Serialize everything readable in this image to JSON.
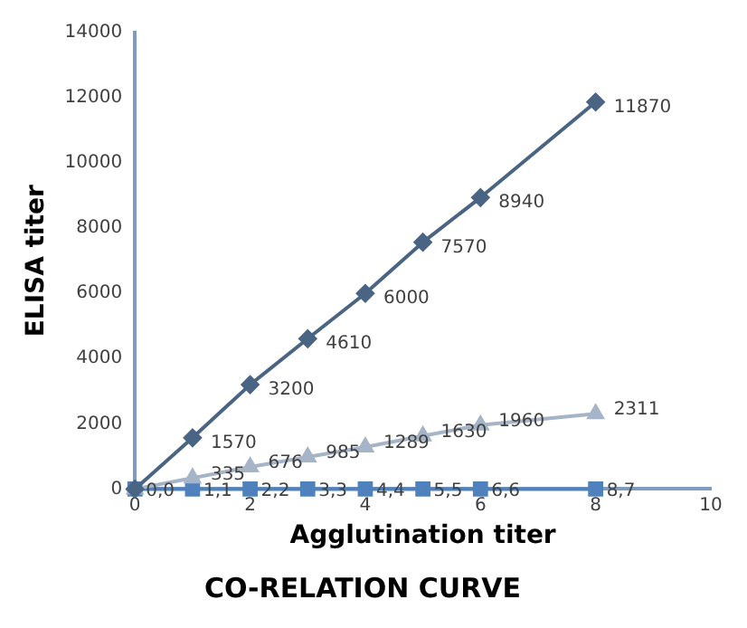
{
  "chart_data": {
    "type": "line",
    "title": "CO-RELATION CURVE",
    "xlabel": "Agglutination titer",
    "ylabel": "ELISA titer",
    "x": [
      0,
      1,
      2,
      3,
      4,
      5,
      6,
      8
    ],
    "series": [
      {
        "color": "#4a6584",
        "marker": "diamond",
        "values": [
          0,
          1570,
          3200,
          4610,
          6000,
          7570,
          8940,
          11870
        ],
        "value_labels": [
          null,
          "1570",
          "3200",
          "4610",
          "6000",
          "7570",
          "8940",
          "11870"
        ]
      },
      {
        "color": "#a6b4c8",
        "marker": "triangle",
        "values": [
          0,
          335,
          676,
          985,
          1289,
          1630,
          1960,
          2311
        ],
        "value_labels": [
          null,
          "335",
          "676",
          "985",
          "1289",
          "1630",
          "1960",
          "2311"
        ]
      },
      {
        "color": "#4f81bd",
        "marker": "square",
        "values": [
          0,
          0,
          0,
          0,
          0,
          0,
          0,
          0
        ]
      }
    ],
    "annotations": [
      {
        "text": "0,0",
        "x": 0,
        "y": 0
      },
      {
        "text": "1,1",
        "x": 1,
        "y": 0
      },
      {
        "text": "2,2",
        "x": 2,
        "y": 0
      },
      {
        "text": "3,3",
        "x": 3,
        "y": 0
      },
      {
        "text": "4,4",
        "x": 4,
        "y": 0
      },
      {
        "text": "5,5",
        "x": 5,
        "y": 0
      },
      {
        "text": "6,6",
        "x": 6,
        "y": 0
      },
      {
        "text": "8,7",
        "x": 8,
        "y": 0
      }
    ],
    "xlim": [
      0,
      10
    ],
    "xticks": [
      0,
      2,
      4,
      6,
      8,
      10
    ],
    "ylim": [
      0,
      14000
    ],
    "yticks": [
      0,
      2000,
      4000,
      6000,
      8000,
      10000,
      12000,
      14000
    ],
    "grid": false,
    "legend": false
  }
}
